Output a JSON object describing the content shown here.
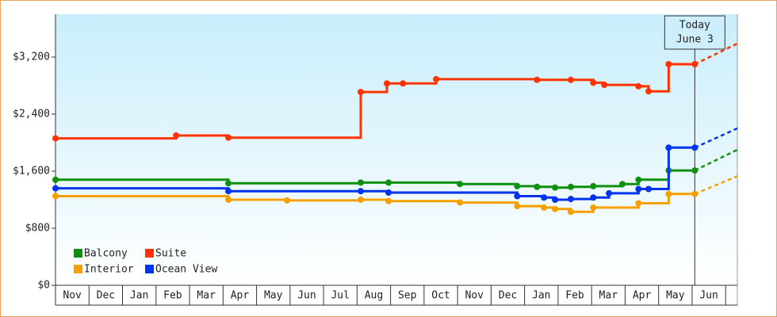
{
  "chart_data": {
    "type": "step-line",
    "categories": [
      "Nov",
      "Dec",
      "Jan",
      "Feb",
      "Mar",
      "Apr",
      "May",
      "Jun",
      "Jul",
      "Aug",
      "Sep",
      "Oct",
      "Nov",
      "Dec",
      "Jan",
      "Feb",
      "Mar",
      "Apr",
      "May",
      "Jun"
    ],
    "xlim": [
      0,
      20.35
    ],
    "ylim": [
      0,
      3800
    ],
    "yticks": [
      {
        "value": 0,
        "label": "$0"
      },
      {
        "value": 800,
        "label": "$800"
      },
      {
        "value": 1600,
        "label": "$1,600"
      },
      {
        "value": 2400,
        "label": "$2,400"
      },
      {
        "value": 3200,
        "label": "$3,200"
      }
    ],
    "today": {
      "x": 19.08,
      "label": [
        "Today",
        "June 3"
      ]
    },
    "legend": "lower left",
    "series": [
      {
        "name": "Balcony",
        "color": "#109010",
        "x": [
          0,
          5.16,
          9.11,
          9.94,
          12.07,
          13.78,
          14.37,
          14.91,
          15.38,
          16.05,
          16.92,
          17.4,
          18.3,
          19.08
        ],
        "values": [
          1480,
          1430,
          1440,
          1440,
          1420,
          1390,
          1380,
          1370,
          1380,
          1390,
          1420,
          1480,
          1610,
          1610
        ],
        "forecast_value": 1900
      },
      {
        "name": "Suite",
        "color": "#ff3300",
        "x": [
          0,
          3.6,
          5.16,
          9.11,
          9.89,
          10.37,
          11.36,
          14.37,
          15.38,
          16.05,
          16.38,
          17.4,
          17.7,
          18.3,
          19.08
        ],
        "values": [
          2060,
          2100,
          2070,
          2710,
          2830,
          2830,
          2890,
          2880,
          2880,
          2840,
          2810,
          2790,
          2720,
          3100,
          3100
        ],
        "forecast_value": 3390
      },
      {
        "name": "Interior",
        "color": "#f5a000",
        "x": [
          0,
          5.16,
          6.91,
          9.11,
          9.94,
          12.07,
          13.78,
          14.58,
          14.91,
          15.38,
          16.05,
          17.4,
          18.3,
          19.08
        ],
        "values": [
          1250,
          1200,
          1190,
          1200,
          1180,
          1160,
          1110,
          1090,
          1070,
          1030,
          1090,
          1150,
          1280,
          1280
        ],
        "forecast_value": 1530
      },
      {
        "name": "Ocean View",
        "color": "#0033ee",
        "x": [
          0,
          5.16,
          9.11,
          9.94,
          13.78,
          14.58,
          14.91,
          15.38,
          16.05,
          16.52,
          17.4,
          17.7,
          18.3,
          19.08
        ],
        "values": [
          1360,
          1320,
          1320,
          1300,
          1250,
          1230,
          1200,
          1210,
          1230,
          1290,
          1350,
          1350,
          1930,
          1930
        ],
        "forecast_value": 2200
      }
    ]
  }
}
